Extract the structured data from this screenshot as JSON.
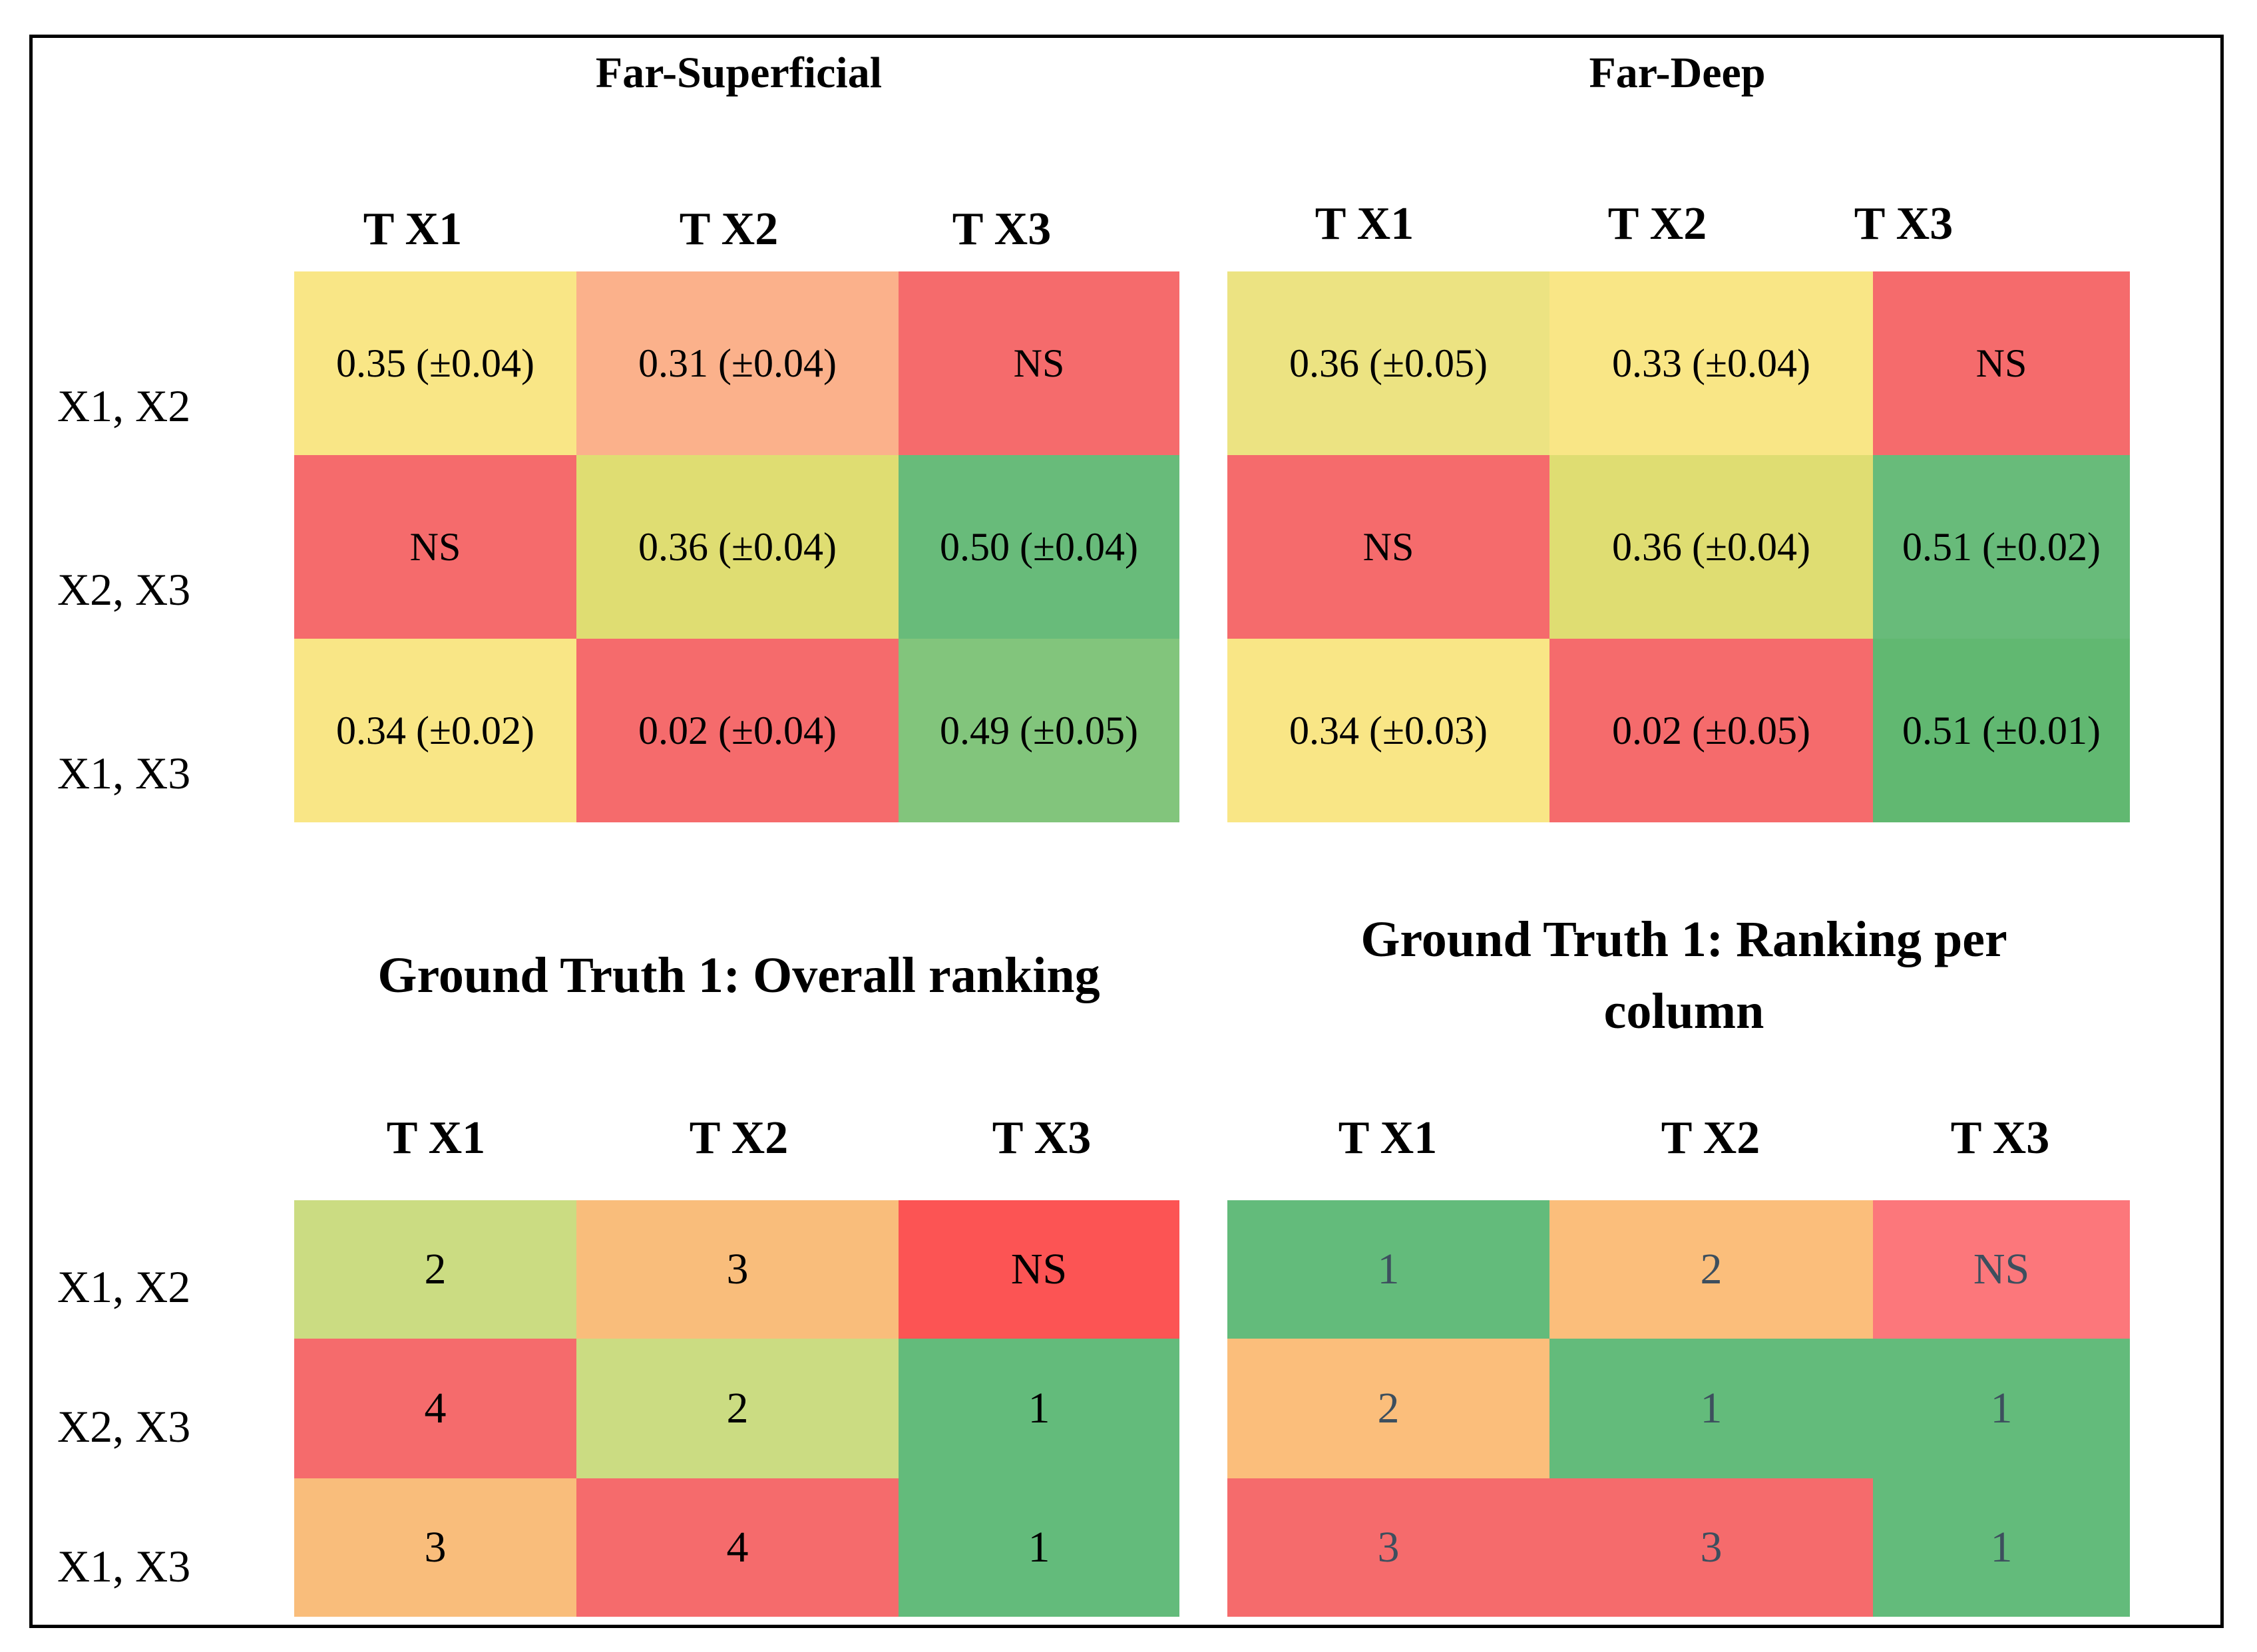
{
  "colors": {
    "yellow": "#f9e686",
    "yellow_olive": "#ece382",
    "olive": "#dfdd72",
    "peach": "#fbb18b",
    "red": "#f56b6c",
    "red_bright": "#fc5454",
    "pink": "#fc777b",
    "green": "#68bb7a",
    "green_mid": "#72c07c",
    "green_light": "#82c57c",
    "green_dark": "#61b871",
    "lime": "#cbdc82",
    "orange": "#f9bd7b",
    "orange_alt": "#fbbe7b"
  },
  "panels": {
    "far_superficial": {
      "title": "Far-Superficial",
      "columns": [
        "T X1",
        "T  X2",
        "T  X3"
      ],
      "rows": [
        "X1, X2",
        "X2, X3",
        "X1, X3"
      ],
      "cells": [
        [
          {
            "text": "0.35 (±0.04)",
            "color": "#f9e686"
          },
          {
            "text": "0.31 (±0.04)",
            "color": "#fbb18b"
          },
          {
            "text": "NS",
            "color": "#f56b6c"
          }
        ],
        [
          {
            "text": "NS",
            "color": "#f56b6c"
          },
          {
            "text": "0.36 (±0.04)",
            "color": "#dfdd72"
          },
          {
            "text": "0.50 (±0.04)",
            "color": "#68bb7a"
          }
        ],
        [
          {
            "text": "0.34 (±0.02)",
            "color": "#f9e686"
          },
          {
            "text": "0.02 (±0.04)",
            "color": "#f56b6c"
          },
          {
            "text": "0.49 (±0.05)",
            "color": "#82c57c"
          }
        ]
      ]
    },
    "far_deep": {
      "title": "Far-Deep",
      "columns": [
        "T  X1",
        "T X2",
        "T X3"
      ],
      "cells": [
        [
          {
            "text": "0.36 (±0.05)",
            "color": "#ece382"
          },
          {
            "text": "0.33 (±0.04)",
            "color": "#f9e686"
          },
          {
            "text": "NS",
            "color": "#f56b6c"
          }
        ],
        [
          {
            "text": "NS",
            "color": "#f56b6c"
          },
          {
            "text": "0.36 (±0.04)",
            "color": "#dfdd72"
          },
          {
            "text": "0.51 (±0.02)",
            "color": "#68bb7a"
          }
        ],
        [
          {
            "text": "0.34 (±0.03)",
            "color": "#f9e686"
          },
          {
            "text": "0.02 (±0.05)",
            "color": "#f56b6c"
          },
          {
            "text": "0.51 (±0.01)",
            "color": "#61b871"
          }
        ]
      ]
    },
    "overall_ranking": {
      "title": "Ground Truth 1: Overall ranking",
      "columns": [
        "T X1",
        "T X2",
        "T X3"
      ],
      "rows": [
        "X1, X2",
        "X2, X3",
        "X1, X3"
      ],
      "cells": [
        [
          {
            "text": "2",
            "color": "#cbdc82"
          },
          {
            "text": "3",
            "color": "#f9bd7b"
          },
          {
            "text": "NS",
            "color": "#fc5454"
          }
        ],
        [
          {
            "text": "4",
            "color": "#f56b6c"
          },
          {
            "text": "2",
            "color": "#cbdc82"
          },
          {
            "text": "1",
            "color": "#63bb7b"
          }
        ],
        [
          {
            "text": "3",
            "color": "#f9bd7b"
          },
          {
            "text": "4",
            "color": "#f56b6c"
          },
          {
            "text": "1",
            "color": "#63bb7b"
          }
        ]
      ]
    },
    "ranking_per_column": {
      "title_line1": "Ground Truth 1: Ranking per",
      "title_line2": "column",
      "columns": [
        "T X1",
        "T X2",
        "T X3"
      ],
      "cells": [
        [
          {
            "text": "1",
            "color": "#63bb7b"
          },
          {
            "text": "2",
            "color": "#fbbe7b"
          },
          {
            "text": "NS",
            "color": "#fc777b"
          }
        ],
        [
          {
            "text": "2",
            "color": "#fbbe7b"
          },
          {
            "text": "1",
            "color": "#63bb7b"
          },
          {
            "text": "1",
            "color": "#63bb7b"
          }
        ],
        [
          {
            "text": "3",
            "color": "#f56b6c"
          },
          {
            "text": "3",
            "color": "#f56b6c"
          },
          {
            "text": "1",
            "color": "#63bb7b"
          }
        ]
      ]
    }
  }
}
